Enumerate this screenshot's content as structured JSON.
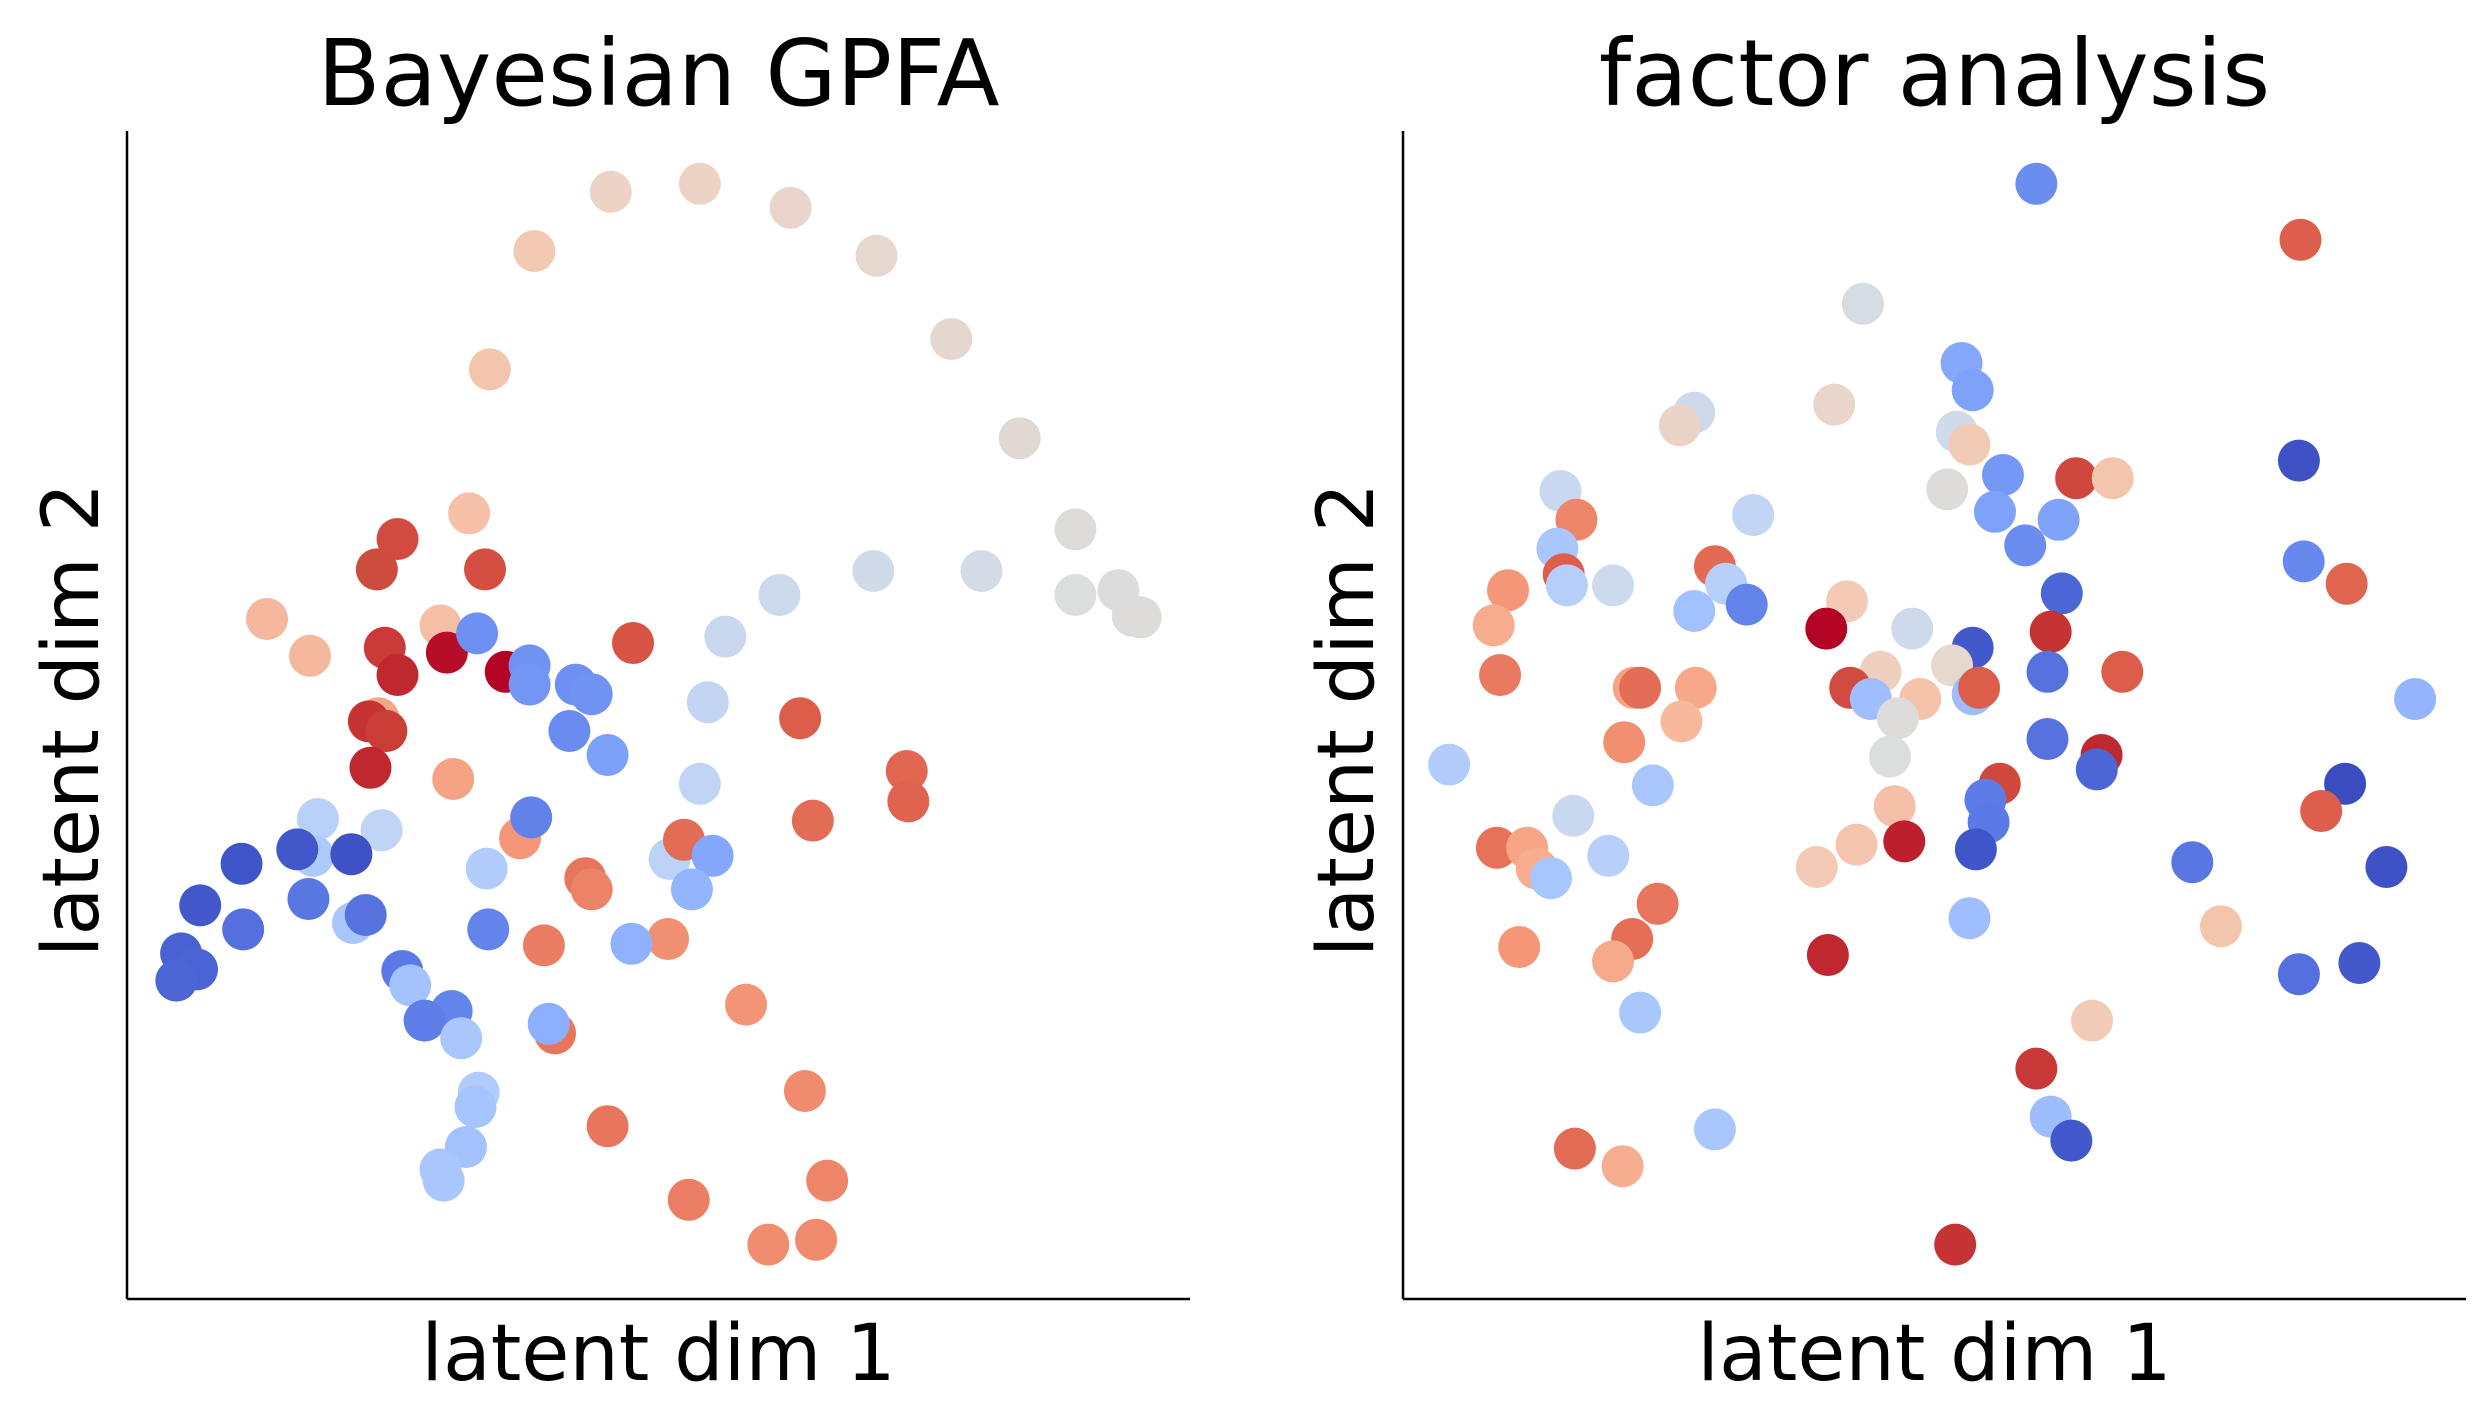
{
  "chart_data": [
    {
      "type": "scatter",
      "title": "Bayesian GPFA",
      "xlabel": "latent dim 1",
      "ylabel": "latent dim 2",
      "xlim": [
        0,
        668
      ],
      "ylim": [
        0,
        730
      ],
      "x": [
        256,
        304,
        360,
        417,
        471,
        518,
        561,
        596,
        623,
        632,
        637,
        596,
        537,
        469,
        410,
        376,
        365,
        360,
        341,
        228,
        215,
        88,
        115,
        197,
        170,
        157,
        225,
        162,
        170,
        201,
        238,
        158,
        152,
        163,
        153,
        318,
        423,
        490,
        491,
        431,
        350,
        288,
        292,
        262,
        340,
        269,
        389,
        426,
        302,
        440,
        353,
        433,
        403,
        247,
        205,
        220,
        253,
        253,
        282,
        292,
        278,
        302,
        254,
        368,
        355,
        317,
        226,
        227,
        265,
        160,
        120,
        117,
        142,
        150,
        107,
        141,
        114,
        72,
        46,
        73,
        34,
        44,
        31,
        173,
        178,
        204,
        187,
        210,
        221,
        219,
        213,
        197,
        199
      ],
      "y": [
        655,
        692,
        697,
        682,
        652,
        600,
        538,
        481,
        443,
        427,
        426,
        440,
        455,
        455,
        440,
        414,
        373,
        322,
        275,
        581,
        491,
        425,
        402,
        421,
        475,
        456,
        456,
        407,
        390,
        404,
        392,
        363,
        361,
        355,
        332,
        410,
        363,
        330,
        311,
        299,
        287,
        263,
        256,
        221,
        225,
        166,
        184,
        130,
        108,
        74,
        62,
        37,
        34,
        288,
        325,
        416,
        396,
        384,
        384,
        378,
        355,
        340,
        301,
        277,
        256,
        222,
        269,
        231,
        172,
        293,
        300,
        277,
        235,
        240,
        281,
        278,
        250,
        272,
        246,
        231,
        216,
        206,
        199,
        205,
        196,
        180,
        174,
        163,
        129,
        120,
        95,
        81,
        74
      ],
      "colors": [
        "#f2c9b3",
        "#ecd3c5",
        "#ecd3c5",
        "#e9d5cb",
        "#e6d7cf",
        "#e4d7d0",
        "#dfd8d3",
        "#dddcdb",
        "#dcdcdc",
        "#dddcdb",
        "#dddcdb",
        "#dcdddd",
        "#d4dbe6",
        "#d0dae9",
        "#cdd9ec",
        "#c9d7ef",
        "#c4d5f3",
        "#c0d4f5",
        "#bcd2f7",
        "#f4c5ad",
        "#f5c0a7",
        "#f5b89d",
        "#f6b89c",
        "#f5bfa6",
        "#d24b40",
        "#ce4b3f",
        "#d44e41",
        "#c93a39",
        "#c0282f",
        "#b70d28",
        "#b40426",
        "#f6a586",
        "#c53334",
        "#cb3e38",
        "#c0282f",
        "#d75445",
        "#dc5d4a",
        "#e16751",
        "#df634e",
        "#e36c55",
        "#e36c55",
        "#e8765c",
        "#ed8366",
        "#eb7d62",
        "#f18f71",
        "#e8765c",
        "#f39475",
        "#f08b6e",
        "#e8765c",
        "#ee8468",
        "#ec7f63",
        "#f08a6c",
        "#f18d6f",
        "#f39778",
        "#f6a385",
        "#6e90f2",
        "#7093f3",
        "#7396f5",
        "#6e90f2",
        "#7093f3",
        "#6a8bef",
        "#7da0f9",
        "#6282ea",
        "#84a7fc",
        "#93b5fe",
        "#90b2fe",
        "#b2ccfb",
        "#6384eb",
        "#8db0fe",
        "#c0d4f5",
        "#b9d0f9",
        "#aec9fc",
        "#a9c6fd",
        "#5673e0",
        "#4257c9",
        "#3e51c5",
        "#5977e3",
        "#4055c8",
        "#4358cb",
        "#5470de",
        "#4961d2",
        "#4b64d5",
        "#4c66d6",
        "#5b7ae5",
        "#a3c2fe",
        "#6384eb",
        "#5e7de7",
        "#aac7fd",
        "#b1cbfc",
        "#a6c4fe",
        "#a3c2fe",
        "#a9c6fd",
        "#aac7fd"
      ]
    },
    {
      "type": "scatter",
      "title": "factor analysis",
      "xlabel": "latent dim 1",
      "ylabel": "latent dim 2",
      "xlim": [
        0,
        668
      ],
      "ylim": [
        0,
        730
      ],
      "x": [
        398,
        564,
        289,
        351,
        358,
        271,
        183,
        174,
        348,
        356,
        377,
        423,
        446,
        342,
        372,
        412,
        391,
        563,
        566,
        593,
        414,
        220,
        99,
        109,
        97,
        101,
        103,
        132,
        66,
        196,
        203,
        216,
        183,
        279,
        266,
        320,
        407,
        358,
        57,
        61,
        300,
        345,
        281,
        405,
        452,
        145,
        149,
        184,
        294,
        325,
        358,
        362,
        311,
        175,
        306,
        139,
        405,
        439,
        436,
        29,
        157,
        309,
        375,
        366,
        368,
        592,
        577,
        107,
        285,
        315,
        360,
        59,
        78,
        84,
        93,
        129,
        260,
        496,
        618,
        160,
        356,
        73,
        144,
        132,
        267,
        514,
        563,
        601,
        149,
        433,
        398,
        407,
        196,
        420,
        108,
        138,
        347,
        636
      ],
      "y": [
        697,
        662,
        622,
        585,
        568,
        559,
        554,
        546,
        542,
        534,
        515,
        513,
        513,
        506,
        492,
        487,
        471,
        524,
        461,
        447,
        441,
        490,
        505,
        487,
        469,
        453,
        446,
        446,
        443,
        458,
        447,
        434,
        430,
        436,
        419,
        419,
        417,
        407,
        421,
        390,
        392,
        396,
        382,
        392,
        392,
        382,
        382,
        382,
        375,
        375,
        378,
        382,
        363,
        361,
        339,
        348,
        350,
        340,
        331,
        334,
        321,
        308,
        322,
        312,
        298,
        322,
        305,
        302,
        284,
        286,
        281,
        282,
        282,
        269,
        263,
        277,
        270,
        273,
        270,
        247,
        238,
        220,
        225,
        211,
        215,
        233,
        203,
        210,
        179,
        174,
        144,
        114,
        106,
        99,
        94,
        83,
        34,
        375
      ],
      "colors": [
        "#6b8df0",
        "#dd5f4b",
        "#d7dce3",
        "#85a8fc",
        "#7ea1fa",
        "#e9d5cb",
        "#cedaeb",
        "#ead4c8",
        "#cfdaea",
        "#f2cbb7",
        "#7597f6",
        "#d0473d",
        "#f4c5ad",
        "#dedcdb",
        "#7ea1fa",
        "#80a3fa",
        "#6b8df0",
        "#3e51c5",
        "#6788ee",
        "#e0654f",
        "#4c66d6",
        "#c3d5f4",
        "#c9d7f0",
        "#ee8669",
        "#aac7fd",
        "#dd5f4b",
        "#b6cefa",
        "#cdd9ec",
        "#f39778",
        "#e36b54",
        "#b7cff9",
        "#6384eb",
        "#a2c1ff",
        "#f2cab5",
        "#b40426",
        "#cedaeb",
        "#c53334",
        "#4358cb",
        "#f7ac8e",
        "#e97a5f",
        "#efcfbf",
        "#e6d7cf",
        "#d24b40",
        "#5572df",
        "#dc5d4a",
        "#f6a385",
        "#e36c55",
        "#f7a889",
        "#9ebeff",
        "#f5c2aa",
        "#9dbdff",
        "#dc5d4a",
        "#dedcdb",
        "#f7b89c",
        "#dcdddd",
        "#f18f71",
        "#5572df",
        "#c0282f",
        "#4c66d6",
        "#b2ccfb",
        "#aac7fd",
        "#f5c0a7",
        "#d0473d",
        "#5d7ce6",
        "#5b7ae5",
        "#3b4cc0",
        "#dd5f4b",
        "#cad8ef",
        "#f5c4ac",
        "#bd1f2d",
        "#4055c8",
        "#e67259",
        "#f6a586",
        "#f7ad90",
        "#a7c5fe",
        "#b7cff9",
        "#f2cab5",
        "#5977e3",
        "#3e51c5",
        "#e8765c",
        "#9ebeff",
        "#f39778",
        "#e46e56",
        "#f7a98b",
        "#c0282f",
        "#f4c5ad",
        "#5470de",
        "#4358cb",
        "#a9c6fd",
        "#f2cbb7",
        "#c83836",
        "#9dbdff",
        "#a9c6fd",
        "#4358cb",
        "#e36c55",
        "#f7ad90",
        "#c53334",
        "#93b5fe"
      ]
    }
  ]
}
